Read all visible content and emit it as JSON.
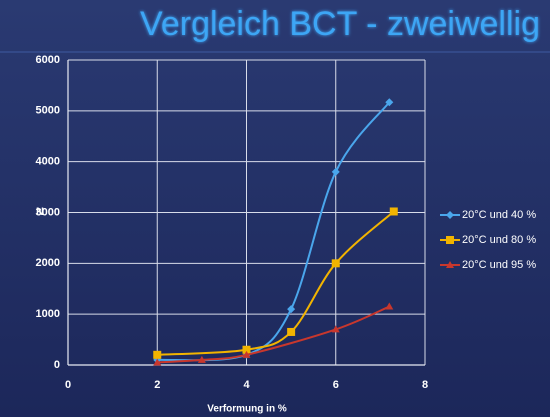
{
  "chart_data": {
    "type": "line",
    "title": "Vergleich BCT - zweiwellig",
    "x_label": "Verformung in %",
    "y_label": "N",
    "xlim": [
      0,
      8
    ],
    "xticks": [
      0,
      2,
      4,
      6,
      8
    ],
    "ylim": [
      0,
      6000
    ],
    "yticks": [
      0,
      1000,
      2000,
      3000,
      4000,
      5000,
      6000
    ],
    "grid": true,
    "legend": "right",
    "smooth": true,
    "series": [
      {
        "name": "20°C und 40 %",
        "color": "#4aa6ec",
        "marker": "diamond",
        "x": [
          2,
          4,
          5,
          6,
          7.2
        ],
        "values": [
          100,
          200,
          1100,
          3800,
          5170
        ]
      },
      {
        "name": "20°C und 80 %",
        "color": "#f2b400",
        "marker": "square",
        "x": [
          2,
          4,
          5,
          6,
          7.3
        ],
        "values": [
          200,
          300,
          650,
          2000,
          3020
        ]
      },
      {
        "name": "20°C und 95 %",
        "color": "#c8372d",
        "marker": "triangle",
        "x": [
          2,
          3,
          4,
          6,
          7.2
        ],
        "values": [
          50,
          100,
          200,
          700,
          1150
        ]
      }
    ]
  }
}
